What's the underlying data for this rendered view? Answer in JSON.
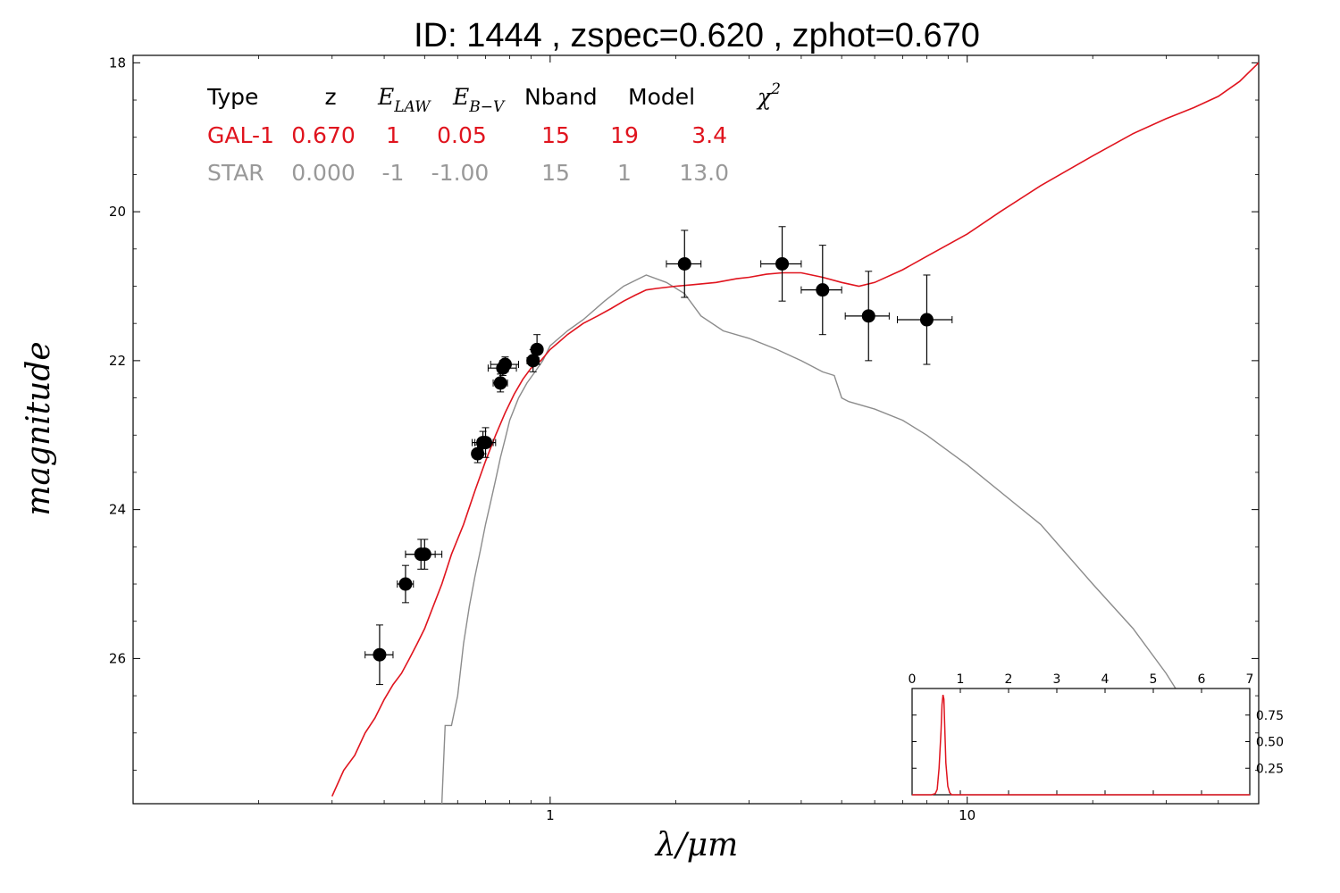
{
  "title": "ID:  1444  , zspec=0.620 , zphot=0.670",
  "colors": {
    "galaxy": "#e0141e",
    "star": "#8c8c8c",
    "points": "#000000"
  },
  "fit_table": {
    "headers": [
      "Type",
      "z",
      "E",
      "LAW",
      "E",
      "B−V",
      "Nband",
      "Model",
      "χ",
      "2"
    ],
    "rows": [
      {
        "color": "#e0141e",
        "cells": [
          "GAL-1",
          "0.670",
          "1",
          "0.05",
          "15",
          "19",
          "3.4"
        ]
      },
      {
        "color": "#999999",
        "cells": [
          "STAR",
          "0.000",
          "-1",
          "-1.00",
          "15",
          "1",
          "13.0"
        ]
      }
    ]
  },
  "chart_data": [
    {
      "type": "line",
      "title": "ID:  1444  , zspec=0.620 , zphot=0.670",
      "xlabel": "λ/μm",
      "ylabel": "magnitude",
      "xscale": "log",
      "xlim": [
        0.1,
        50
      ],
      "ylim": [
        27.95,
        17.9
      ],
      "y_inverted": true,
      "xticks": [
        1,
        10
      ],
      "xtick_labels": [
        "1",
        "10"
      ],
      "yticks": [
        18,
        20,
        22,
        24,
        26
      ],
      "ytick_labels": [
        "18",
        "20",
        "22",
        "24",
        "26"
      ],
      "grid": false,
      "series": [
        {
          "name": "GAL-1",
          "color": "#e0141e",
          "x": [
            0.3,
            0.32,
            0.34,
            0.36,
            0.38,
            0.4,
            0.42,
            0.44,
            0.46,
            0.48,
            0.5,
            0.52,
            0.55,
            0.58,
            0.62,
            0.66,
            0.7,
            0.74,
            0.78,
            0.82,
            0.86,
            0.9,
            0.95,
            1.0,
            1.05,
            1.1,
            1.2,
            1.3,
            1.4,
            1.5,
            1.6,
            1.7,
            1.8,
            2.0,
            2.2,
            2.5,
            2.8,
            3.0,
            3.3,
            3.6,
            4.0,
            4.5,
            5.0,
            5.5,
            6.0,
            7.0,
            8.0,
            10.0,
            12.0,
            15.0,
            20.0,
            25.0,
            30.0,
            35.0,
            40.0,
            45.0,
            50.0
          ],
          "values": [
            27.85,
            27.5,
            27.3,
            27.0,
            26.8,
            26.55,
            26.35,
            26.2,
            26.0,
            25.8,
            25.6,
            25.35,
            25.0,
            24.6,
            24.2,
            23.75,
            23.35,
            23.0,
            22.7,
            22.45,
            22.25,
            22.1,
            22.0,
            21.85,
            21.75,
            21.65,
            21.5,
            21.4,
            21.3,
            21.2,
            21.12,
            21.05,
            21.03,
            21.0,
            20.98,
            20.95,
            20.9,
            20.88,
            20.84,
            20.82,
            20.82,
            20.88,
            20.95,
            21.0,
            20.95,
            20.78,
            20.6,
            20.3,
            20.0,
            19.65,
            19.25,
            18.95,
            18.75,
            18.6,
            18.45,
            18.25,
            18.0
          ]
        },
        {
          "name": "STAR",
          "color": "#8c8c8c",
          "x": [
            0.55,
            0.56,
            0.58,
            0.6,
            0.62,
            0.64,
            0.66,
            0.68,
            0.7,
            0.72,
            0.74,
            0.76,
            0.78,
            0.8,
            0.84,
            0.88,
            0.92,
            0.96,
            1.0,
            1.1,
            1.2,
            1.35,
            1.5,
            1.7,
            1.9,
            2.1,
            2.3,
            2.6,
            3.0,
            3.5,
            4.0,
            4.5,
            4.8,
            5.0,
            5.2,
            6.0,
            7.0,
            8.0,
            10.0,
            15.0,
            20.0,
            25.0,
            30.0,
            35.0,
            40.0,
            45.0
          ],
          "values": [
            27.95,
            26.9,
            26.9,
            26.5,
            25.8,
            25.3,
            24.9,
            24.55,
            24.2,
            23.9,
            23.6,
            23.3,
            23.05,
            22.8,
            22.5,
            22.3,
            22.15,
            22.0,
            21.8,
            21.6,
            21.45,
            21.2,
            21.0,
            20.85,
            20.95,
            21.1,
            21.4,
            21.6,
            21.7,
            21.85,
            22.0,
            22.15,
            22.2,
            22.5,
            22.55,
            22.65,
            22.8,
            23.0,
            23.4,
            24.2,
            25.0,
            25.6,
            26.2,
            26.8,
            27.3,
            27.8
          ]
        }
      ],
      "points": {
        "x": [
          0.39,
          0.45,
          0.49,
          0.5,
          0.67,
          0.69,
          0.7,
          0.76,
          0.77,
          0.78,
          0.91,
          0.93,
          2.1,
          3.6,
          4.5,
          5.8,
          8.0
        ],
        "values": [
          25.95,
          25.0,
          24.6,
          24.6,
          23.25,
          23.1,
          23.1,
          22.3,
          22.1,
          22.05,
          22.0,
          21.85,
          20.7,
          20.7,
          21.05,
          21.4,
          21.45
        ],
        "x_err_low": [
          0.03,
          0.02,
          0.04,
          0.05,
          0.02,
          0.04,
          0.04,
          0.03,
          0.06,
          0.06,
          0.03,
          0.02,
          0.2,
          0.4,
          0.5,
          0.7,
          1.2
        ],
        "x_err_high": [
          0.03,
          0.02,
          0.04,
          0.05,
          0.02,
          0.04,
          0.04,
          0.03,
          0.06,
          0.06,
          0.03,
          0.02,
          0.2,
          0.4,
          0.5,
          0.7,
          1.2
        ],
        "y_err": [
          0.4,
          0.25,
          0.2,
          0.2,
          0.12,
          0.15,
          0.2,
          0.12,
          0.1,
          0.1,
          0.15,
          0.2,
          0.45,
          0.5,
          0.6,
          0.6,
          0.6
        ]
      }
    },
    {
      "type": "line",
      "title": "",
      "xlabel": "",
      "ylabel": "",
      "xlim": [
        0,
        7
      ],
      "ylim": [
        0,
        1.0
      ],
      "xticks": [
        0,
        1,
        2,
        3,
        4,
        5,
        6,
        7
      ],
      "xtick_labels": [
        "0",
        "1",
        "2",
        "3",
        "4",
        "5",
        "6",
        "7"
      ],
      "yticks": [
        0.25,
        0.5,
        0.75
      ],
      "ytick_labels": [
        "0.25",
        "0.50",
        "0.75"
      ],
      "series": [
        {
          "name": "",
          "color": "#e0141e",
          "x": [
            0,
            0.4,
            0.48,
            0.52,
            0.56,
            0.6,
            0.62,
            0.64,
            0.66,
            0.68,
            0.7,
            0.74,
            0.78,
            0.82,
            0.9,
            1.0,
            7.0
          ],
          "values": [
            0.0,
            0.0,
            0.01,
            0.05,
            0.25,
            0.6,
            0.85,
            0.94,
            0.9,
            0.6,
            0.3,
            0.08,
            0.02,
            0.0,
            0.0,
            0.0,
            0.0
          ]
        }
      ]
    }
  ]
}
